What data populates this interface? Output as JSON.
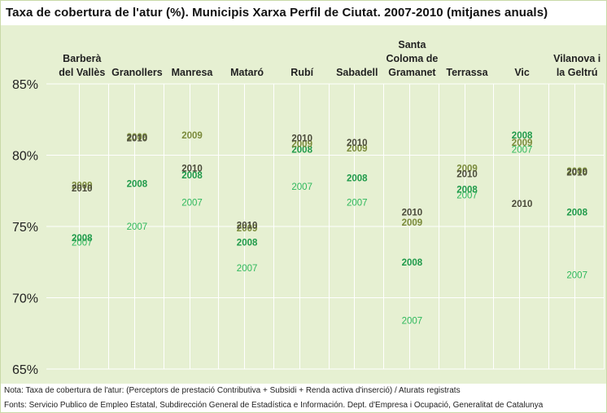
{
  "title": "Taxa de cobertura de l'atur (%). Municipis Xarxa Perfil de Ciutat. 2007-2010 (mitjanes anuals)",
  "note": "Nota: Taxa de cobertura de l'atur: (Perceptors de prestació Contributiva + Subsidi + Renda activa d'inserció) / Aturats registrats",
  "source": "Fonts: Servicio Publico de Empleo Estatal, Subdirección General de Estadística e Información. Dept. d'Empresa i Ocupació, Generalitat de Catalunya",
  "colors": {
    "background": "#e6f0d2",
    "grid": "#ffffff",
    "2007": "#2eb85c",
    "2008": "#1f9a4a",
    "2009": "#7a8a3a",
    "2010": "#4a4a3a"
  },
  "chart_data": {
    "type": "scatter",
    "title": "Taxa de cobertura de l'atur (%). Municipis Xarxa Perfil de Ciutat. 2007-2010 (mitjanes anuals)",
    "xlabel": "",
    "ylabel": "",
    "ylim": [
      65,
      85
    ],
    "yticks": [
      85,
      80,
      75,
      70,
      65
    ],
    "ytick_labels": [
      "85%",
      "80%",
      "75%",
      "70%",
      "65%"
    ],
    "grid": true,
    "legend": "none",
    "categories": [
      [
        "Barberà",
        "del Vallès"
      ],
      [
        "Granollers"
      ],
      [
        "Manresa"
      ],
      [
        "Mataró"
      ],
      [
        "Rubí"
      ],
      [
        "Sabadell"
      ],
      [
        "Santa",
        "Coloma de",
        "Gramanet"
      ],
      [
        "Terrassa"
      ],
      [
        "Vic"
      ],
      [
        "Vilanova i",
        "la Geltrú"
      ]
    ],
    "series": [
      {
        "name": "2007",
        "values": [
          73.9,
          75.0,
          76.7,
          72.1,
          77.8,
          76.7,
          68.4,
          77.2,
          80.4,
          71.6
        ]
      },
      {
        "name": "2008",
        "values": [
          74.2,
          78.0,
          78.6,
          73.9,
          80.4,
          78.4,
          72.5,
          77.6,
          81.4,
          76.0
        ]
      },
      {
        "name": "2009",
        "values": [
          77.9,
          81.3,
          81.4,
          74.9,
          80.8,
          80.5,
          75.3,
          79.1,
          80.9,
          78.9
        ]
      },
      {
        "name": "2010",
        "values": [
          77.7,
          81.2,
          79.1,
          75.1,
          81.2,
          80.9,
          76.0,
          78.7,
          76.6,
          78.8
        ]
      }
    ]
  }
}
